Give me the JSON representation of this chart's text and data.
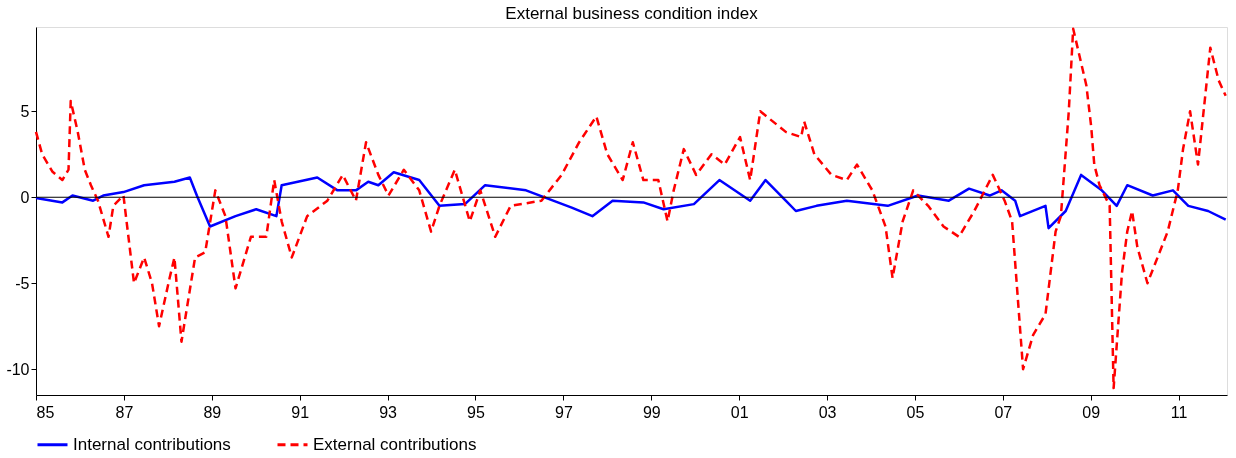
{
  "chart_data": {
    "type": "line",
    "title": "External business condition index",
    "xlim": [
      1985,
      2012.1
    ],
    "ylim": [
      -11.5,
      9.9
    ],
    "xticks": [
      {
        "value": 1985,
        "label": "85"
      },
      {
        "value": 1987,
        "label": "87"
      },
      {
        "value": 1989,
        "label": "89"
      },
      {
        "value": 1991,
        "label": "91"
      },
      {
        "value": 1993,
        "label": "93"
      },
      {
        "value": 1995,
        "label": "95"
      },
      {
        "value": 1997,
        "label": "97"
      },
      {
        "value": 1999,
        "label": "99"
      },
      {
        "value": 2001,
        "label": "01"
      },
      {
        "value": 2003,
        "label": "03"
      },
      {
        "value": 2005,
        "label": "05"
      },
      {
        "value": 2007,
        "label": "07"
      },
      {
        "value": 2009,
        "label": "09"
      },
      {
        "value": 2011,
        "label": "11"
      }
    ],
    "yticks": [
      -10,
      -5,
      0,
      5
    ],
    "grid": false,
    "legend": "bottom",
    "ref_lines": [
      {
        "axis": "y",
        "value": 0,
        "color": "#000000",
        "line_style": "solid"
      }
    ],
    "series": [
      {
        "name": "Internal contributions",
        "color": "#0000ff",
        "line_style": "solid",
        "x": [
          1985.0,
          1985.6,
          1985.83,
          1986.3,
          1986.53,
          1986.99,
          1987.46,
          1988.15,
          1988.5,
          1988.66,
          1988.96,
          1989.54,
          1990.01,
          1990.47,
          1990.59,
          1991.4,
          1991.86,
          1992.28,
          1992.56,
          1992.79,
          1993.14,
          1993.72,
          1994.18,
          1994.76,
          1995.22,
          1996.15,
          1997.19,
          1997.66,
          1998.12,
          1998.82,
          1999.28,
          1999.97,
          2000.55,
          2001.25,
          2001.6,
          2002.06,
          2002.29,
          2002.76,
          2003.45,
          2004.38,
          2005.07,
          2005.77,
          2006.23,
          2006.7,
          2006.97,
          2007.28,
          2007.39,
          2007.97,
          2008.04,
          2008.43,
          2008.78,
          2009.25,
          2009.59,
          2009.83,
          2010.41,
          2010.87,
          2011.22,
          2011.67,
          2012.07
        ],
        "values": [
          -0.05,
          -0.3,
          0.1,
          -0.2,
          0.1,
          0.3,
          0.7,
          0.9,
          1.15,
          0.1,
          -1.7,
          -1.1,
          -0.7,
          -1.1,
          0.7,
          1.15,
          0.4,
          0.4,
          0.9,
          0.7,
          1.45,
          1.0,
          -0.5,
          -0.4,
          0.7,
          0.4,
          -0.6,
          -1.1,
          -0.2,
          -0.3,
          -0.7,
          -0.4,
          1.0,
          -0.2,
          1.0,
          -0.2,
          -0.8,
          -0.5,
          -0.2,
          -0.5,
          0.1,
          -0.2,
          0.5,
          0.1,
          0.4,
          -0.2,
          -1.1,
          -0.5,
          -1.8,
          -0.8,
          1.3,
          0.4,
          -0.5,
          0.7,
          0.1,
          0.4,
          -0.5,
          -0.8,
          -1.3
        ]
      },
      {
        "name": "External contributions",
        "color": "#ff0000",
        "line_style": "dashed",
        "x": [
          1985.0,
          1985.14,
          1985.37,
          1985.6,
          1985.74,
          1985.79,
          1985.95,
          1986.11,
          1986.25,
          1986.41,
          1986.65,
          1986.76,
          1986.99,
          1987.23,
          1987.46,
          1987.64,
          1987.8,
          1988.04,
          1988.15,
          1988.31,
          1988.62,
          1988.85,
          1989.08,
          1989.31,
          1989.54,
          1989.89,
          1990.24,
          1990.42,
          1990.59,
          1990.82,
          1991.17,
          1991.63,
          1991.98,
          1992.28,
          1992.51,
          1992.79,
          1993.02,
          1993.37,
          1993.72,
          1993.99,
          1994.18,
          1994.53,
          1994.87,
          1995.11,
          1995.45,
          1995.8,
          1996.5,
          1996.96,
          1997.36,
          1997.75,
          1998.0,
          1998.35,
          1998.58,
          1998.82,
          1999.16,
          1999.37,
          1999.51,
          1999.74,
          2000.02,
          2000.37,
          2000.67,
          2001.02,
          2001.25,
          2001.48,
          2002.06,
          2002.41,
          2002.48,
          2002.71,
          2003.1,
          2003.45,
          2003.68,
          2004.03,
          2004.33,
          2004.49,
          2004.72,
          2004.96,
          2005.3,
          2005.65,
          2006.0,
          2006.35,
          2006.77,
          2007.04,
          2007.21,
          2007.46,
          2007.69,
          2007.97,
          2008.2,
          2008.32,
          2008.5,
          2008.6,
          2008.9,
          2009.01,
          2009.08,
          2009.2,
          2009.43,
          2009.52,
          2009.71,
          2009.83,
          2009.94,
          2010.06,
          2010.29,
          2010.52,
          2010.75,
          2010.98,
          2011.1,
          2011.26,
          2011.44,
          2011.72,
          2011.91,
          2012.07
        ],
        "values": [
          3.8,
          2.5,
          1.5,
          1.0,
          1.6,
          5.6,
          3.8,
          1.6,
          0.7,
          -0.2,
          -2.3,
          -0.5,
          0.1,
          -5.0,
          -3.5,
          -5.0,
          -7.5,
          -4.7,
          -3.5,
          -8.4,
          -3.5,
          -3.2,
          0.4,
          -1.1,
          -5.3,
          -2.3,
          -2.3,
          1.0,
          -1.4,
          -3.5,
          -1.1,
          -0.2,
          1.3,
          -0.2,
          3.2,
          1.3,
          0.1,
          1.6,
          0.4,
          -2.0,
          -0.5,
          1.6,
          -1.4,
          0.4,
          -2.3,
          -0.5,
          -0.2,
          1.3,
          3.2,
          4.7,
          2.5,
          1.0,
          3.2,
          1.0,
          1.0,
          -1.4,
          0.4,
          2.8,
          1.3,
          2.5,
          1.9,
          3.5,
          1.0,
          5.0,
          3.8,
          3.5,
          4.4,
          2.5,
          1.3,
          1.0,
          1.9,
          0.4,
          -1.7,
          -4.7,
          -1.4,
          0.4,
          -0.5,
          -1.7,
          -2.3,
          -0.8,
          1.3,
          -0.2,
          -1.4,
          -10.0,
          -8.0,
          -6.8,
          -2.0,
          -1.1,
          5.0,
          9.8,
          6.5,
          4.1,
          1.9,
          0.7,
          -0.5,
          -11.1,
          -4.4,
          -2.0,
          -0.8,
          -2.9,
          -5.0,
          -3.5,
          -2.0,
          0.4,
          2.8,
          5.0,
          1.9,
          8.7,
          6.8,
          5.9
        ]
      }
    ]
  }
}
